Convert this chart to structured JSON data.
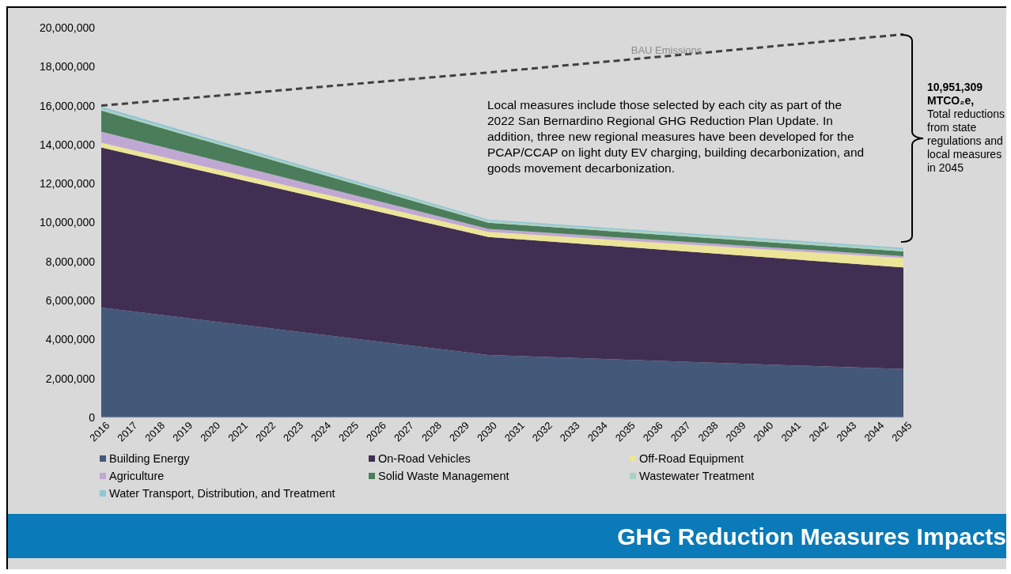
{
  "chart_data": {
    "type": "area",
    "stacked": true,
    "title": "GHG Reduction Measures Impacts",
    "x": [
      2016,
      2030,
      2045
    ],
    "series": [
      {
        "name": "Building Energy",
        "color": "#44587a",
        "values": [
          5640000,
          3200000,
          2480000
        ]
      },
      {
        "name": "On-Road Vehicles",
        "color": "#402f52",
        "values": [
          8210000,
          6060000,
          5220000
        ]
      },
      {
        "name": "Off-Road Equipment",
        "color": "#ece597",
        "values": [
          250000,
          260000,
          480000
        ]
      },
      {
        "name": "Agriculture",
        "color": "#c0a8d4",
        "values": [
          570000,
          160000,
          100000
        ]
      },
      {
        "name": "Solid Waste Management",
        "color": "#4c7d5a",
        "values": [
          1080000,
          310000,
          240000
        ]
      },
      {
        "name": "Wastewater Treatment",
        "color": "#a8d4c0",
        "values": [
          80000,
          90000,
          110000
        ]
      },
      {
        "name": "Water Transport, Distribution, and Treatment",
        "color": "#92c5d6",
        "values": [
          120000,
          70000,
          70000
        ]
      },
      {
        "name": "BAU Emissions",
        "type": "line",
        "color": "#404040",
        "line_style": "dashed",
        "values": [
          16000000,
          17700000,
          19660000
        ]
      }
    ],
    "xlim": [
      2016,
      2045
    ],
    "xticks": [
      2016,
      2017,
      2018,
      2019,
      2020,
      2021,
      2022,
      2023,
      2024,
      2025,
      2026,
      2027,
      2028,
      2029,
      2030,
      2031,
      2032,
      2033,
      2034,
      2035,
      2036,
      2037,
      2038,
      2039,
      2040,
      2041,
      2042,
      2043,
      2044,
      2045
    ],
    "ylim": [
      0,
      20000000
    ],
    "yticks": [
      {
        "value": 0,
        "label": "0"
      },
      {
        "value": 2000000,
        "label": "2,000,000"
      },
      {
        "value": 4000000,
        "label": "4,000,000"
      },
      {
        "value": 6000000,
        "label": "6,000,000"
      },
      {
        "value": 8000000,
        "label": "8,000,000"
      },
      {
        "value": 10000000,
        "label": "10,000,000"
      },
      {
        "value": 12000000,
        "label": "12,000,000"
      },
      {
        "value": 14000000,
        "label": "14,000,000"
      },
      {
        "value": 16000000,
        "label": "16,000,000"
      },
      {
        "value": 18000000,
        "label": "18,000,000"
      },
      {
        "value": 20000000,
        "label": "20,000,000"
      }
    ],
    "grid": false,
    "legend": "bottom",
    "annotations": [
      "Local measures include those selected by each city as part of the 2022 San Bernardino Regional GHG Reduction Plan Update. In addition, three new regional measures have been developed for the PCAP/CCAP on light duty EV charging, building decarbonization, and goods movement decarbonization.",
      "10,951,309 MTCO₂e,",
      "Total reductions from state regulations and local measures in 2045"
    ]
  }
}
